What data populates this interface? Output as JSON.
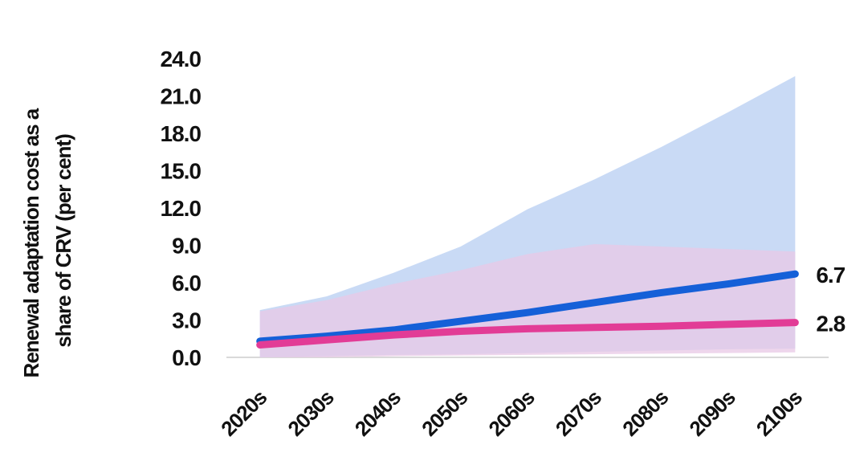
{
  "chart_data": {
    "type": "line",
    "ylabel": [
      "Renewal adaptation cost as a",
      "share of CRV (per cent)"
    ],
    "categories": [
      "2020s",
      "2030s",
      "2040s",
      "2050s",
      "2060s",
      "2070s",
      "2080s",
      "2090s",
      "2100s"
    ],
    "series": [
      {
        "color": "#1560d8",
        "band_color": "#c9daf5",
        "values": [
          1.3,
          1.7,
          2.2,
          2.9,
          3.6,
          4.4,
          5.2,
          5.9,
          6.7
        ],
        "upper": [
          3.8,
          4.9,
          6.8,
          8.9,
          11.9,
          14.3,
          16.9,
          19.7,
          22.6
        ],
        "lower": [
          0.0,
          0.1,
          0.2,
          0.25,
          0.35,
          0.45,
          0.55,
          0.65,
          0.7
        ]
      },
      {
        "color": "#e23c96",
        "band_color": "#e8c8e6",
        "values": [
          1.0,
          1.4,
          1.8,
          2.1,
          2.3,
          2.4,
          2.5,
          2.65,
          2.8
        ],
        "upper": [
          3.7,
          4.6,
          5.9,
          7.0,
          8.3,
          9.1,
          8.9,
          8.7,
          8.5
        ],
        "lower": [
          0.0,
          0.0,
          0.1,
          0.15,
          0.2,
          0.25,
          0.3,
          0.35,
          0.4
        ]
      }
    ],
    "ylim": [
      0,
      24
    ],
    "yticks": [
      {
        "value": 0,
        "label": "0.0"
      },
      {
        "value": 3,
        "label": "3.0"
      },
      {
        "value": 6,
        "label": "6.0"
      },
      {
        "value": 9,
        "label": "9.0"
      },
      {
        "value": 12,
        "label": "12.0"
      },
      {
        "value": 15,
        "label": "15.0"
      },
      {
        "value": 18,
        "label": "18.0"
      },
      {
        "value": 21,
        "label": "21.0"
      },
      {
        "value": 24,
        "label": "24.0"
      }
    ]
  }
}
